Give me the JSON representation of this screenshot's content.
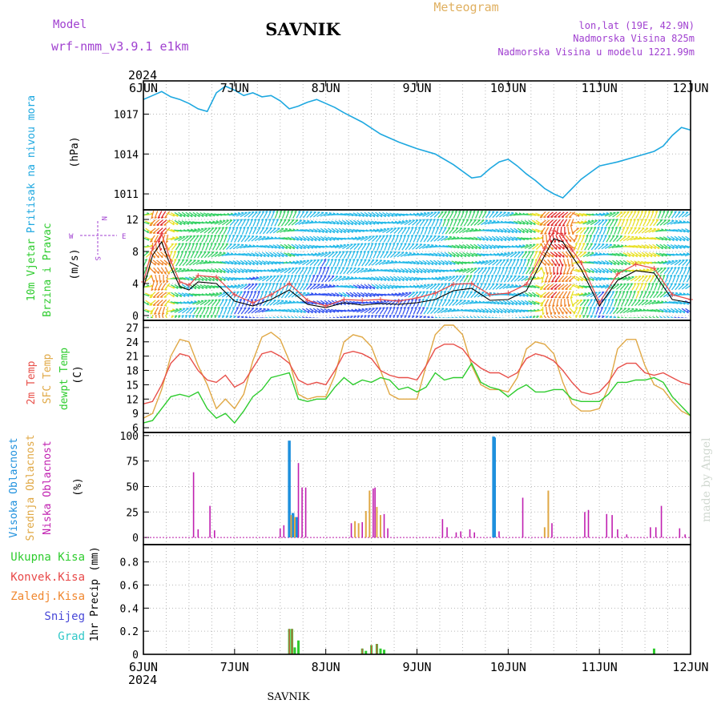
{
  "header": {
    "model_label": "Model",
    "model_name": "wrf-nmm_v3.9.1 e1km",
    "station": "SAVNIK",
    "product": "Meteogram",
    "lonlat": "lon,lat (19E, 42.9N)",
    "altitude": "Nadmorska Visina 825m",
    "model_altitude": "Nadmorska Visina u modelu 1221.99m",
    "year_top": "2024",
    "year_bottom": "2024",
    "footer": "SAVNIK",
    "credit": "made by Angel"
  },
  "colors": {
    "pressure": "#1ea8e0",
    "temp2m": "#e8504a",
    "sfctemp": "#e0a845",
    "dewpt": "#2ecc2e",
    "cloud_high": "#1e90dd",
    "cloud_mid": "#e0a845",
    "cloud_low": "#c020b0",
    "precip_total": "#2ecc2e",
    "precip_conv": "#e84848",
    "precip_grid": "#f08830",
    "precip_snow": "#4848d8",
    "precip_graupel": "#30c8c8",
    "wind_speed": "#000000",
    "wind_gust": "#e84848"
  },
  "chart_data": [
    {
      "type": "line",
      "panel": "pressure",
      "ylabel_title": "Pritisak na nivou mora",
      "ylabel_unit": "(hPa)",
      "yticks": [
        "1011",
        "1014",
        "1017"
      ],
      "x_days": [
        "6JUN",
        "7JUN",
        "8JUN",
        "9JUN",
        "10JUN",
        "11JUN",
        "12JUN"
      ],
      "ylim": [
        1009.8,
        1019.5
      ],
      "grid": true,
      "series": [
        {
          "x": [
            0,
            0.1,
            0.2,
            0.3,
            0.4,
            0.5,
            0.6,
            0.7,
            0.8,
            0.9,
            1.0,
            1.1,
            1.2,
            1.3,
            1.4,
            1.5,
            1.6,
            1.7,
            1.8,
            1.9,
            2.0,
            2.1,
            2.2,
            2.4,
            2.6,
            2.8,
            3.0,
            3.2,
            3.4,
            3.6,
            3.7,
            3.8,
            3.9,
            4.0,
            4.1,
            4.2,
            4.3,
            4.4,
            4.5,
            4.6,
            4.7,
            4.8,
            4.9,
            5.0,
            5.2,
            5.4,
            5.6,
            5.7,
            5.8,
            5.9,
            6.0
          ],
          "values": [
            1018.1,
            1018.4,
            1018.7,
            1018.3,
            1018.1,
            1017.8,
            1017.4,
            1017.2,
            1018.6,
            1019.1,
            1018.8,
            1018.4,
            1018.6,
            1018.3,
            1018.4,
            1018.0,
            1017.4,
            1017.6,
            1017.9,
            1018.1,
            1017.8,
            1017.5,
            1017.1,
            1016.4,
            1015.5,
            1014.9,
            1014.4,
            1014.0,
            1013.2,
            1012.2,
            1012.3,
            1012.9,
            1013.4,
            1013.6,
            1013.1,
            1012.5,
            1012.0,
            1011.4,
            1011.0,
            1010.7,
            1011.4,
            1012.1,
            1012.6,
            1013.1,
            1013.4,
            1013.8,
            1014.2,
            1014.6,
            1015.4,
            1016.0,
            1015.8
          ]
        }
      ]
    },
    {
      "type": "line",
      "panel": "wind",
      "ylabel_title": "10m Vjetar",
      "ylabel_title2": "Brzina i Pravac",
      "ylabel_unit": "(m/s)",
      "yticks": [
        "0",
        "4",
        "8",
        "12"
      ],
      "compass": {
        "n": "N",
        "s": "S",
        "e": "E",
        "w": "W"
      },
      "ylim": [
        -0.6,
        13.2
      ],
      "grid": true,
      "series": [
        {
          "name": "speed",
          "x": [
            0,
            0.1,
            0.2,
            0.3,
            0.4,
            0.5,
            0.6,
            0.8,
            1.0,
            1.2,
            1.4,
            1.6,
            1.8,
            2.0,
            2.2,
            2.4,
            2.6,
            2.8,
            3.0,
            3.2,
            3.4,
            3.6,
            3.8,
            4.0,
            4.2,
            4.4,
            4.5,
            4.6,
            4.7,
            4.8,
            5.0,
            5.2,
            5.4,
            5.6,
            5.8,
            6.0
          ],
          "values": [
            3.4,
            7.5,
            9.2,
            6.1,
            3.6,
            3.2,
            4.2,
            4.0,
            1.8,
            1.2,
            2.0,
            3.2,
            1.4,
            1.0,
            1.6,
            1.3,
            1.5,
            1.4,
            1.6,
            2.0,
            3.1,
            3.4,
            1.9,
            2.0,
            3.1,
            7.5,
            9.6,
            9.2,
            7.4,
            5.8,
            1.2,
            4.4,
            5.6,
            5.3,
            2.0,
            1.6
          ]
        },
        {
          "name": "gust",
          "x": [
            0,
            0.1,
            0.2,
            0.3,
            0.4,
            0.5,
            0.6,
            0.8,
            1.0,
            1.2,
            1.4,
            1.6,
            1.8,
            2.0,
            2.2,
            2.4,
            2.6,
            2.8,
            3.0,
            3.2,
            3.4,
            3.6,
            3.8,
            4.0,
            4.2,
            4.4,
            4.5,
            4.6,
            4.7,
            4.8,
            5.0,
            5.2,
            5.4,
            5.6,
            5.8,
            6.0
          ],
          "values": [
            4.2,
            8.4,
            10.2,
            6.8,
            4.2,
            3.8,
            5.0,
            4.8,
            2.6,
            1.6,
            2.6,
            4.0,
            1.9,
            1.2,
            2.0,
            1.9,
            2.0,
            1.8,
            2.2,
            2.8,
            3.9,
            4.0,
            2.6,
            2.8,
            3.9,
            8.4,
            10.6,
            10.0,
            8.2,
            6.6,
            1.6,
            5.2,
            6.4,
            5.9,
            2.6,
            2.0
          ]
        }
      ]
    },
    {
      "type": "line",
      "panel": "temperature",
      "ylabel_title": "2m Temp",
      "ylabel_title2": "SFC Temp",
      "ylabel_title3": "dewpt Temp",
      "ylabel_unit": "(C)",
      "yticks": [
        "6",
        "9",
        "12",
        "15",
        "18",
        "21",
        "24",
        "27"
      ],
      "ylim": [
        5,
        28.5
      ],
      "grid": true,
      "series": [
        {
          "name": "2m",
          "x": [
            0,
            0.1,
            0.2,
            0.3,
            0.4,
            0.5,
            0.6,
            0.7,
            0.8,
            0.9,
            1.0,
            1.1,
            1.2,
            1.3,
            1.4,
            1.5,
            1.6,
            1.7,
            1.8,
            1.9,
            2.0,
            2.1,
            2.2,
            2.3,
            2.4,
            2.5,
            2.6,
            2.7,
            2.8,
            2.9,
            3.0,
            3.1,
            3.2,
            3.3,
            3.4,
            3.5,
            3.6,
            3.7,
            3.8,
            3.9,
            4.0,
            4.1,
            4.2,
            4.3,
            4.4,
            4.5,
            4.6,
            4.7,
            4.8,
            4.9,
            5.0,
            5.1,
            5.2,
            5.3,
            5.4,
            5.5,
            5.6,
            5.7,
            5.8,
            5.9,
            6.0
          ],
          "values": [
            11.0,
            11.5,
            15.0,
            19.5,
            21.5,
            21.0,
            18.0,
            16.0,
            15.5,
            17.0,
            14.5,
            15.5,
            18.5,
            21.5,
            22.0,
            21.0,
            19.5,
            16.0,
            15.0,
            15.5,
            15.0,
            18.0,
            21.5,
            22.0,
            21.5,
            20.5,
            18.0,
            17.0,
            16.5,
            16.5,
            16.0,
            19.0,
            22.5,
            23.5,
            23.5,
            22.5,
            20.0,
            18.5,
            17.5,
            17.5,
            16.5,
            17.5,
            20.5,
            21.5,
            21.0,
            20.0,
            18.0,
            15.5,
            13.5,
            13.0,
            13.5,
            15.5,
            18.5,
            19.5,
            19.5,
            17.5,
            17.0,
            17.5,
            16.5,
            15.5,
            15.0
          ]
        },
        {
          "name": "sfc",
          "x": [
            0,
            0.1,
            0.2,
            0.3,
            0.4,
            0.5,
            0.6,
            0.7,
            0.8,
            0.9,
            1.0,
            1.1,
            1.2,
            1.3,
            1.4,
            1.5,
            1.6,
            1.7,
            1.8,
            1.9,
            2.0,
            2.1,
            2.2,
            2.3,
            2.4,
            2.5,
            2.6,
            2.7,
            2.8,
            2.9,
            3.0,
            3.1,
            3.2,
            3.3,
            3.4,
            3.5,
            3.6,
            3.7,
            3.8,
            3.9,
            4.0,
            4.1,
            4.2,
            4.3,
            4.4,
            4.5,
            4.6,
            4.7,
            4.8,
            4.9,
            5.0,
            5.1,
            5.2,
            5.3,
            5.4,
            5.5,
            5.6,
            5.7,
            5.8,
            5.9,
            6.0
          ],
          "values": [
            8.0,
            9.0,
            14.0,
            21.0,
            24.5,
            24.0,
            19.0,
            15.0,
            10.0,
            12.0,
            10.0,
            13.0,
            20.0,
            25.0,
            26.0,
            24.5,
            20.0,
            13.0,
            12.0,
            12.5,
            12.5,
            17.0,
            24.0,
            25.5,
            25.0,
            23.0,
            18.0,
            13.0,
            12.0,
            12.0,
            12.0,
            19.0,
            25.5,
            27.5,
            27.5,
            25.5,
            19.0,
            15.0,
            14.0,
            14.0,
            13.5,
            16.5,
            22.5,
            24.0,
            23.5,
            21.5,
            15.5,
            11.0,
            9.5,
            9.5,
            10.0,
            14.5,
            22.5,
            24.5,
            24.5,
            19.0,
            15.0,
            14.0,
            11.5,
            9.5,
            8.5
          ]
        },
        {
          "name": "dewpt",
          "x": [
            0,
            0.1,
            0.2,
            0.3,
            0.4,
            0.5,
            0.6,
            0.7,
            0.8,
            0.9,
            1.0,
            1.1,
            1.2,
            1.3,
            1.4,
            1.5,
            1.6,
            1.7,
            1.8,
            1.9,
            2.0,
            2.1,
            2.2,
            2.3,
            2.4,
            2.5,
            2.6,
            2.7,
            2.8,
            2.9,
            3.0,
            3.1,
            3.2,
            3.3,
            3.4,
            3.5,
            3.6,
            3.7,
            3.8,
            3.9,
            4.0,
            4.1,
            4.2,
            4.3,
            4.4,
            4.5,
            4.6,
            4.7,
            4.8,
            4.9,
            5.0,
            5.1,
            5.2,
            5.3,
            5.4,
            5.5,
            5.6,
            5.7,
            5.8,
            5.9,
            6.0
          ],
          "values": [
            7.0,
            7.5,
            10.0,
            12.5,
            13.0,
            12.5,
            13.5,
            10.0,
            8.0,
            9.0,
            7.0,
            9.5,
            12.5,
            14.0,
            16.5,
            17.0,
            17.5,
            12.0,
            11.5,
            12.0,
            12.0,
            14.5,
            16.5,
            15.0,
            16.0,
            15.5,
            16.5,
            16.0,
            14.0,
            14.5,
            13.5,
            14.5,
            17.5,
            16.0,
            16.5,
            16.5,
            19.5,
            15.5,
            14.5,
            14.0,
            12.5,
            14.0,
            15.0,
            13.5,
            13.5,
            14.0,
            14.0,
            12.0,
            11.5,
            11.5,
            11.5,
            13.0,
            15.5,
            15.5,
            16.0,
            16.0,
            16.5,
            15.5,
            12.5,
            10.5,
            8.5
          ]
        }
      ]
    },
    {
      "type": "bar",
      "panel": "cloud",
      "ylabel_title": "Visoka Oblacnost",
      "ylabel_title2": "Srednja Oblacnost",
      "ylabel_title3": "Niska Oblacnost",
      "ylabel_unit": "(%)",
      "yticks": [
        "0",
        "25",
        "50",
        "75",
        "100"
      ],
      "ylim": [
        -7,
        103
      ],
      "grid": true,
      "series": [
        {
          "name": "high",
          "x": [
            1.6,
            1.64,
            1.68,
            3.84,
            3.85
          ],
          "values": [
            95,
            24,
            20,
            99,
            98
          ]
        },
        {
          "name": "mid",
          "x": [
            1.62,
            1.66,
            2.32,
            2.36,
            2.44,
            2.48,
            2.56,
            2.6,
            4.4,
            4.44
          ],
          "values": [
            22,
            20,
            16,
            14,
            26,
            46,
            30,
            22,
            10,
            46
          ]
        },
        {
          "name": "low",
          "x": [
            0.55,
            0.6,
            0.73,
            0.78,
            1.5,
            1.54,
            1.7,
            1.74,
            1.78,
            2.28,
            2.4,
            2.52,
            2.54,
            2.64,
            2.68,
            3.28,
            3.33,
            3.43,
            3.48,
            3.58,
            3.63,
            3.9,
            4.16,
            4.48,
            4.84,
            4.88,
            5.08,
            5.14,
            5.2,
            5.3,
            5.56,
            5.62,
            5.68,
            5.88,
            5.94
          ],
          "values": [
            64,
            8,
            31,
            7,
            9,
            12,
            73,
            49,
            49,
            14,
            15,
            48,
            49,
            23,
            9,
            18,
            10,
            5,
            6,
            8,
            5,
            6,
            39,
            14,
            25,
            27,
            23,
            22,
            8,
            3,
            10,
            10,
            31,
            9,
            3
          ]
        }
      ]
    },
    {
      "type": "bar",
      "panel": "precip",
      "legend": [
        "Ukupna Kisa",
        "Konvek.Kisa",
        "Zaledj.Kisa",
        "Snijeg",
        "Grad"
      ],
      "ylabel_title": "1hr Precip",
      "ylabel_unit": "(mm)",
      "yticks": [
        "0",
        "0.2",
        "0.4",
        "0.6",
        "0.8"
      ],
      "ylim": [
        0,
        0.95
      ],
      "grid": true,
      "series": [
        {
          "name": "Ukupna Kisa",
          "x": [
            1.6,
            1.63,
            1.66,
            1.7,
            2.4,
            2.44,
            2.5,
            2.56,
            2.6,
            2.64,
            5.6
          ],
          "values": [
            0.22,
            0.22,
            0.06,
            0.12,
            0.05,
            0.03,
            0.08,
            0.09,
            0.05,
            0.04,
            0.05
          ]
        },
        {
          "name": "Konvek.Kisa",
          "x": [
            1.6,
            1.63,
            2.4,
            2.5,
            2.56
          ],
          "values": [
            0.22,
            0.22,
            0.05,
            0.08,
            0.09
          ]
        }
      ]
    }
  ]
}
